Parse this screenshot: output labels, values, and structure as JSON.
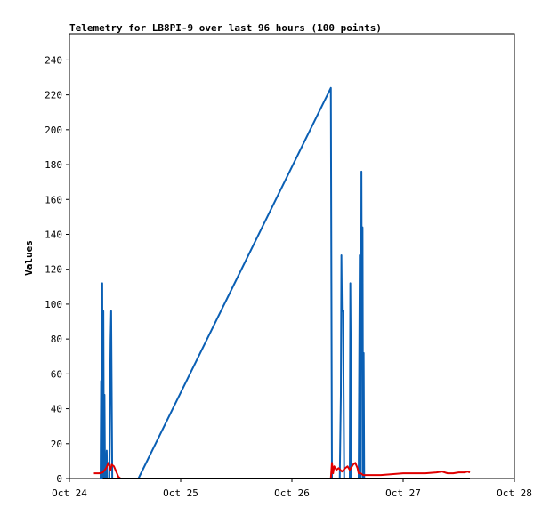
{
  "chart_data": {
    "type": "line",
    "title": "Telemetry for LB8PI-9 over last 96 hours (100 points)",
    "xlabel": "",
    "ylabel": "Values",
    "x_ticks": [
      {
        "value": 0,
        "label": "Oct 24"
      },
      {
        "value": 1,
        "label": "Oct 25"
      },
      {
        "value": 2,
        "label": "Oct 26"
      },
      {
        "value": 3,
        "label": "Oct 27"
      },
      {
        "value": 4,
        "label": "Oct 28"
      }
    ],
    "y_ticks": [
      0,
      20,
      40,
      60,
      80,
      100,
      120,
      140,
      160,
      180,
      200,
      220,
      240
    ],
    "xlim_days_from_oct24": [
      0,
      4
    ],
    "ylim": [
      0,
      255
    ],
    "grid": false,
    "series": [
      {
        "color": "#0a5fb4",
        "points": [
          [
            0.28,
            0
          ],
          [
            0.285,
            56
          ],
          [
            0.29,
            0
          ],
          [
            0.295,
            112
          ],
          [
            0.3,
            0
          ],
          [
            0.305,
            96
          ],
          [
            0.31,
            0
          ],
          [
            0.315,
            48
          ],
          [
            0.32,
            0
          ],
          [
            0.33,
            0
          ],
          [
            0.335,
            16
          ],
          [
            0.34,
            0
          ],
          [
            0.345,
            0
          ],
          [
            0.35,
            0
          ],
          [
            0.36,
            0
          ],
          [
            0.365,
            48
          ],
          [
            0.37,
            80
          ],
          [
            0.375,
            96
          ],
          [
            0.38,
            48
          ],
          [
            0.385,
            0
          ],
          [
            0.4,
            0
          ],
          [
            0.41,
            0
          ],
          [
            0.43,
            0
          ],
          [
            0.5,
            0
          ],
          [
            0.55,
            0
          ],
          [
            0.6,
            0
          ],
          [
            0.62,
            0
          ],
          [
            2.35,
            224
          ],
          [
            2.355,
            112
          ],
          [
            2.36,
            0
          ],
          [
            2.4,
            0
          ],
          [
            2.43,
            0
          ],
          [
            2.44,
            48
          ],
          [
            2.445,
            128
          ],
          [
            2.45,
            96
          ],
          [
            2.46,
            96
          ],
          [
            2.465,
            48
          ],
          [
            2.47,
            0
          ],
          [
            2.5,
            0
          ],
          [
            2.52,
            0
          ],
          [
            2.525,
            112
          ],
          [
            2.53,
            64
          ],
          [
            2.535,
            0
          ],
          [
            2.55,
            0
          ],
          [
            2.6,
            0
          ],
          [
            2.605,
            64
          ],
          [
            2.61,
            128
          ],
          [
            2.615,
            0
          ],
          [
            2.62,
            0
          ],
          [
            2.625,
            176
          ],
          [
            2.63,
            64
          ],
          [
            2.635,
            144
          ],
          [
            2.64,
            0
          ],
          [
            2.645,
            72
          ],
          [
            2.65,
            0
          ],
          [
            2.66,
            0
          ]
        ]
      },
      {
        "color": "#e00000",
        "points": [
          [
            0.22,
            3
          ],
          [
            0.27,
            3
          ],
          [
            0.3,
            3.5
          ],
          [
            0.33,
            6
          ],
          [
            0.35,
            9
          ],
          [
            0.36,
            7
          ],
          [
            0.37,
            5
          ],
          [
            0.38,
            8
          ],
          [
            0.4,
            7
          ],
          [
            0.42,
            4
          ],
          [
            0.44,
            1
          ],
          [
            0.46,
            0
          ],
          [
            0.48,
            0
          ],
          [
            2.35,
            0
          ],
          [
            2.36,
            9
          ],
          [
            2.37,
            3
          ],
          [
            2.38,
            7
          ],
          [
            2.4,
            5
          ],
          [
            2.42,
            6
          ],
          [
            2.45,
            4
          ],
          [
            2.48,
            6
          ],
          [
            2.5,
            7
          ],
          [
            2.52,
            5
          ],
          [
            2.55,
            8
          ],
          [
            2.57,
            9
          ],
          [
            2.59,
            6
          ],
          [
            2.6,
            3
          ],
          [
            2.62,
            3
          ],
          [
            2.64,
            2
          ],
          [
            2.66,
            2
          ],
          [
            2.7,
            2
          ],
          [
            2.8,
            2
          ],
          [
            2.9,
            2.5
          ],
          [
            3.0,
            3
          ],
          [
            3.1,
            3
          ],
          [
            3.2,
            3
          ],
          [
            3.3,
            3.5
          ],
          [
            3.35,
            4
          ],
          [
            3.4,
            3
          ],
          [
            3.45,
            3
          ],
          [
            3.5,
            3.5
          ],
          [
            3.55,
            3.5
          ],
          [
            3.58,
            4
          ],
          [
            3.6,
            3.5
          ]
        ]
      },
      {
        "color": "#000000",
        "points": [
          [
            0.3,
            0
          ],
          [
            0.5,
            0
          ],
          [
            1.0,
            0
          ],
          [
            1.5,
            0
          ],
          [
            2.0,
            0
          ],
          [
            2.35,
            0
          ],
          [
            2.5,
            0
          ],
          [
            2.7,
            0
          ],
          [
            3.0,
            0
          ],
          [
            3.5,
            0
          ],
          [
            3.6,
            0
          ]
        ]
      }
    ]
  }
}
